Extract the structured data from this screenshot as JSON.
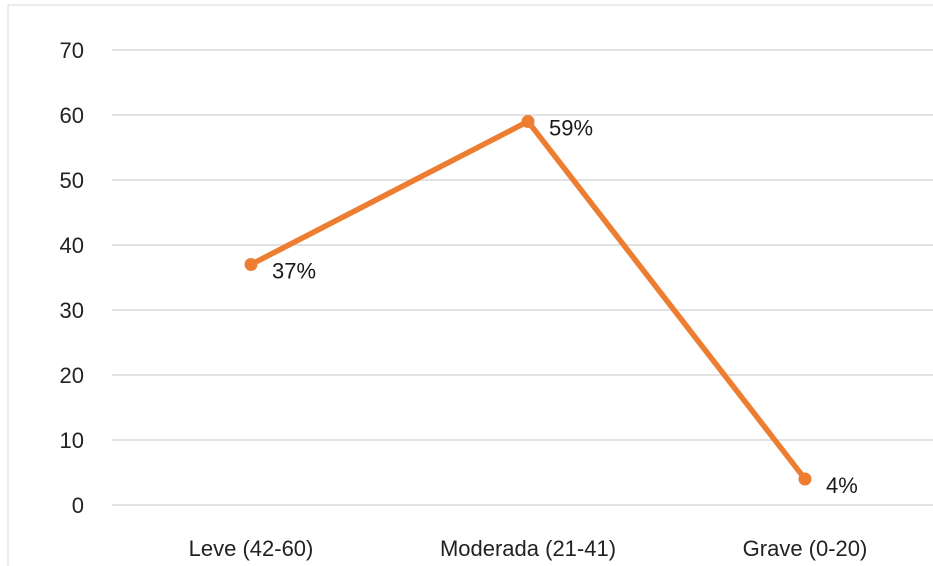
{
  "chart_data": {
    "type": "line",
    "title": "",
    "xlabel": "",
    "ylabel": "",
    "categories": [
      "Leve (42-60)",
      "Moderada (21-41)",
      "Grave (0-20)"
    ],
    "series": [
      {
        "values": [
          37,
          59,
          4
        ],
        "data_labels": [
          "37%",
          "59%",
          "4%"
        ],
        "color": "#ED7D31"
      }
    ],
    "ylim": [
      0,
      70
    ],
    "yticks": [
      0,
      10,
      20,
      30,
      40,
      50,
      60,
      70
    ],
    "grid": true,
    "legend": "none"
  },
  "colors": {
    "gridline": "#d9d9d9",
    "frame": "#d9d9d9",
    "text": "#222222"
  }
}
